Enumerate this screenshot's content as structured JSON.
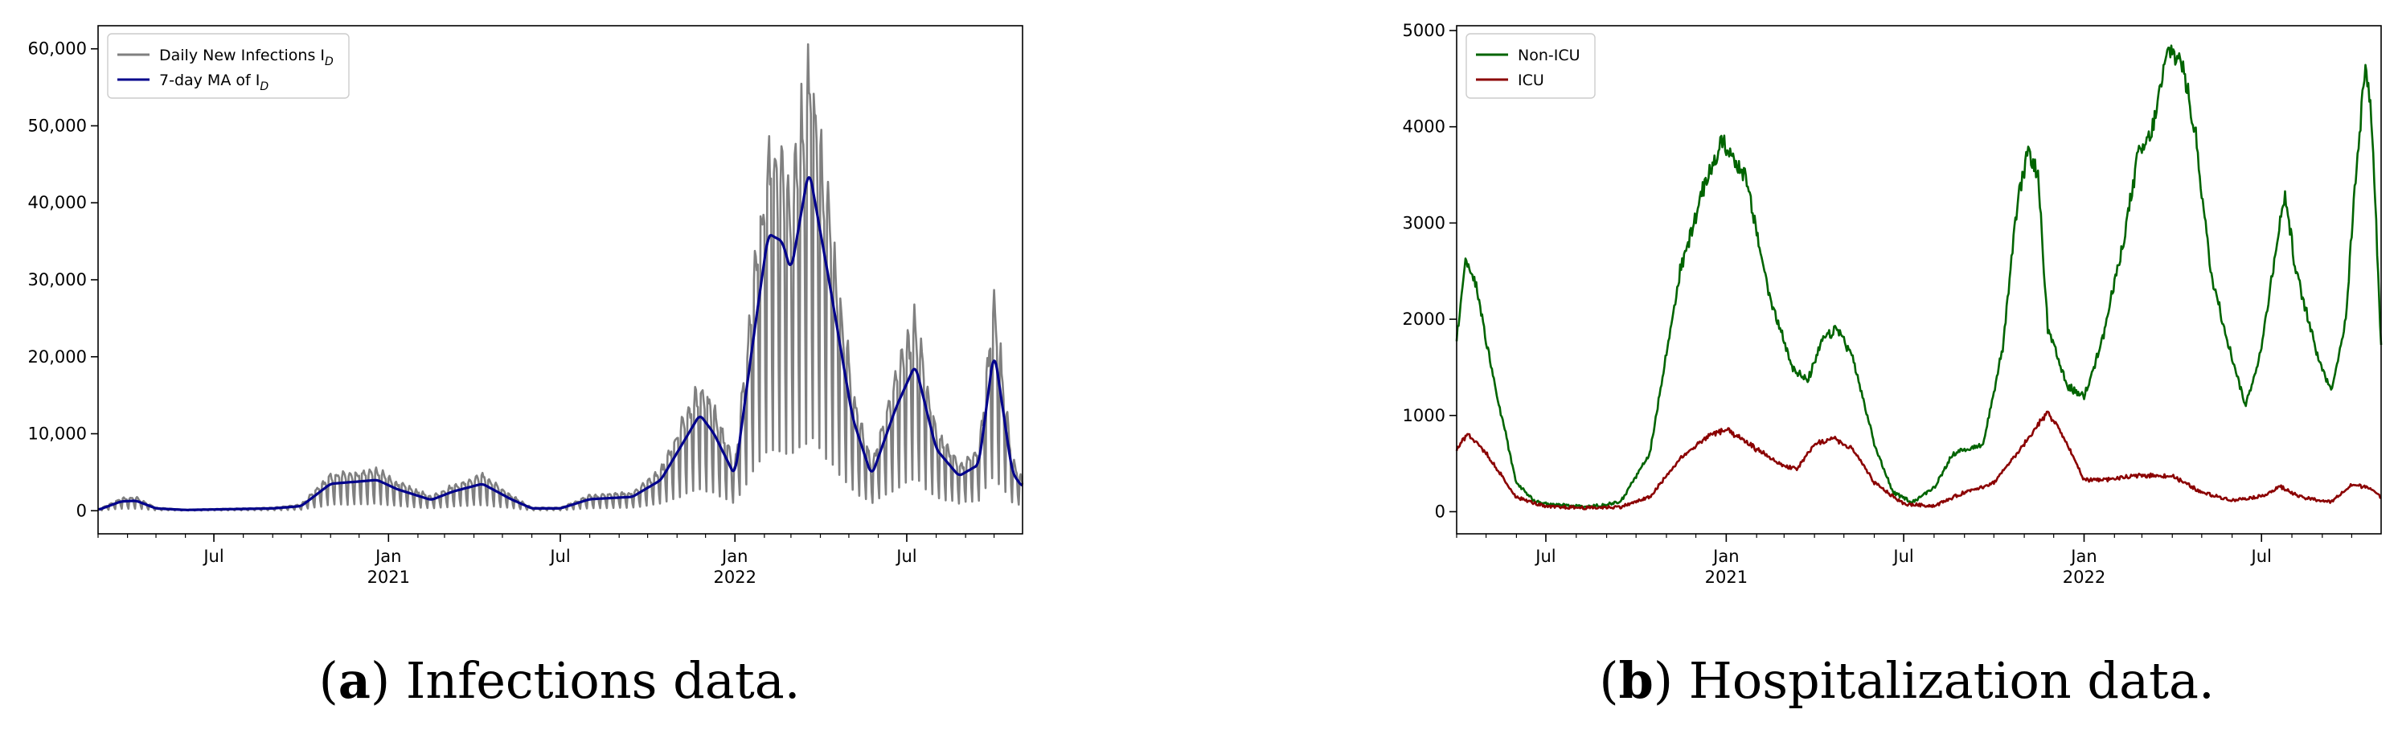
{
  "chart_data": [
    {
      "type": "line",
      "panel": "a",
      "caption_letter": "a",
      "caption_text": " Infections data.",
      "x_range": [
        "2020-03-01",
        "2022-10-31"
      ],
      "ylim": [
        -3000,
        63000
      ],
      "yticks": [
        0,
        10000,
        20000,
        30000,
        40000,
        50000,
        60000
      ],
      "ytick_labels": [
        "0",
        "10,000",
        "20,000",
        "30,000",
        "40,000",
        "50,000",
        "60,000"
      ],
      "xtick_dates": [
        "2020-07-01",
        "2021-01-01",
        "2021-07-01",
        "2022-01-01",
        "2022-07-01"
      ],
      "xtick_labels": [
        "Jul",
        "Jan\n2021",
        "Jul",
        "Jan\n2022",
        "Jul"
      ],
      "grid": false,
      "legend_position": "top-left",
      "series": [
        {
          "name": "Daily New Infections I_D",
          "color": "#808080",
          "smooth": false,
          "weekly_oscillation": true,
          "keypoints": [
            [
              "2020-03-01",
              100
            ],
            [
              "2020-03-25",
              1200
            ],
            [
              "2020-04-10",
              1300
            ],
            [
              "2020-05-01",
              300
            ],
            [
              "2020-06-01",
              100
            ],
            [
              "2020-09-01",
              300
            ],
            [
              "2020-10-01",
              600
            ],
            [
              "2020-11-01",
              3500
            ],
            [
              "2020-12-01",
              3800
            ],
            [
              "2020-12-20",
              4000
            ],
            [
              "2021-01-10",
              2800
            ],
            [
              "2021-02-15",
              1400
            ],
            [
              "2021-03-10",
              2500
            ],
            [
              "2021-04-10",
              3500
            ],
            [
              "2021-05-10",
              1500
            ],
            [
              "2021-06-01",
              300
            ],
            [
              "2021-07-01",
              300
            ],
            [
              "2021-08-01",
              1500
            ],
            [
              "2021-09-15",
              1800
            ],
            [
              "2021-10-15",
              4000
            ],
            [
              "2021-11-25",
              12500
            ],
            [
              "2021-12-10",
              10000
            ],
            [
              "2022-01-01",
              4500
            ],
            [
              "2022-01-20",
              22000
            ],
            [
              "2022-02-05",
              36000
            ],
            [
              "2022-02-20",
              35000
            ],
            [
              "2022-03-01",
              31000
            ],
            [
              "2022-03-20",
              44500
            ],
            [
              "2022-04-10",
              30000
            ],
            [
              "2022-05-05",
              12000
            ],
            [
              "2022-05-25",
              4500
            ],
            [
              "2022-06-20",
              13500
            ],
            [
              "2022-07-10",
              19000
            ],
            [
              "2022-08-01",
              8000
            ],
            [
              "2022-08-25",
              4500
            ],
            [
              "2022-09-15",
              6000
            ],
            [
              "2022-10-01",
              21000
            ],
            [
              "2022-10-20",
              5000
            ],
            [
              "2022-10-31",
              3000
            ]
          ]
        },
        {
          "name": "7-day MA of I_D",
          "color": "#00008b",
          "smooth": true,
          "weekly_oscillation": false,
          "keypoints": [
            [
              "2020-03-01",
              100
            ],
            [
              "2020-03-25",
              1200
            ],
            [
              "2020-04-10",
              1300
            ],
            [
              "2020-05-01",
              300
            ],
            [
              "2020-06-01",
              100
            ],
            [
              "2020-09-01",
              300
            ],
            [
              "2020-10-01",
              600
            ],
            [
              "2020-11-01",
              3500
            ],
            [
              "2020-12-01",
              3800
            ],
            [
              "2020-12-20",
              4000
            ],
            [
              "2021-01-10",
              2800
            ],
            [
              "2021-02-15",
              1400
            ],
            [
              "2021-03-10",
              2500
            ],
            [
              "2021-04-10",
              3500
            ],
            [
              "2021-05-10",
              1500
            ],
            [
              "2021-06-01",
              300
            ],
            [
              "2021-07-01",
              300
            ],
            [
              "2021-08-01",
              1500
            ],
            [
              "2021-09-15",
              1800
            ],
            [
              "2021-10-15",
              4000
            ],
            [
              "2021-11-25",
              12500
            ],
            [
              "2021-12-10",
              10000
            ],
            [
              "2022-01-01",
              4500
            ],
            [
              "2022-01-20",
              22000
            ],
            [
              "2022-02-05",
              36000
            ],
            [
              "2022-02-20",
              35000
            ],
            [
              "2022-03-01",
              31000
            ],
            [
              "2022-03-20",
              44500
            ],
            [
              "2022-04-10",
              30000
            ],
            [
              "2022-05-05",
              12000
            ],
            [
              "2022-05-25",
              4500
            ],
            [
              "2022-06-20",
              13500
            ],
            [
              "2022-07-10",
              19000
            ],
            [
              "2022-08-01",
              8000
            ],
            [
              "2022-08-25",
              4500
            ],
            [
              "2022-09-15",
              6000
            ],
            [
              "2022-10-01",
              21000
            ],
            [
              "2022-10-20",
              5000
            ],
            [
              "2022-10-31",
              3000
            ]
          ]
        }
      ]
    },
    {
      "type": "line",
      "panel": "b",
      "caption_letter": "b",
      "caption_text": " Hospitalization data.",
      "x_range": [
        "2020-04-01",
        "2022-10-31"
      ],
      "ylim": [
        -230,
        5050
      ],
      "yticks": [
        0,
        1000,
        2000,
        3000,
        4000,
        5000
      ],
      "ytick_labels": [
        "0",
        "1000",
        "2000",
        "3000",
        "4000",
        "5000"
      ],
      "xtick_dates": [
        "2020-07-01",
        "2021-01-01",
        "2021-07-01",
        "2022-01-01",
        "2022-07-01"
      ],
      "xtick_labels": [
        "Jul",
        "Jan\n2021",
        "Jul",
        "Jan\n2022",
        "Jul"
      ],
      "grid": false,
      "legend_position": "top-left",
      "series": [
        {
          "name": "Non-ICU",
          "color": "#006400",
          "smooth": false,
          "weekly_oscillation": false,
          "keypoints": [
            [
              "2020-04-01",
              1800
            ],
            [
              "2020-04-10",
              2600
            ],
            [
              "2020-04-20",
              2400
            ],
            [
              "2020-05-10",
              1300
            ],
            [
              "2020-06-01",
              300
            ],
            [
              "2020-06-20",
              100
            ],
            [
              "2020-07-15",
              70
            ],
            [
              "2020-08-15",
              50
            ],
            [
              "2020-09-15",
              100
            ],
            [
              "2020-10-15",
              600
            ],
            [
              "2020-11-15",
              2500
            ],
            [
              "2020-12-10",
              3400
            ],
            [
              "2020-12-28",
              3850
            ],
            [
              "2021-01-20",
              3500
            ],
            [
              "2021-02-15",
              2200
            ],
            [
              "2021-03-10",
              1500
            ],
            [
              "2021-03-25",
              1350
            ],
            [
              "2021-04-10",
              1800
            ],
            [
              "2021-04-25",
              1900
            ],
            [
              "2021-05-10",
              1600
            ],
            [
              "2021-06-01",
              700
            ],
            [
              "2021-06-20",
              200
            ],
            [
              "2021-07-10",
              100
            ],
            [
              "2021-08-01",
              250
            ],
            [
              "2021-08-20",
              600
            ],
            [
              "2021-09-20",
              700
            ],
            [
              "2021-10-10",
              1700
            ],
            [
              "2021-10-25",
              3200
            ],
            [
              "2021-11-05",
              3750
            ],
            [
              "2021-11-15",
              3500
            ],
            [
              "2021-11-25",
              1900
            ],
            [
              "2021-12-15",
              1300
            ],
            [
              "2022-01-01",
              1200
            ],
            [
              "2022-01-20",
              1800
            ],
            [
              "2022-02-10",
              2800
            ],
            [
              "2022-02-25",
              3700
            ],
            [
              "2022-03-10",
              3900
            ],
            [
              "2022-03-28",
              4800
            ],
            [
              "2022-04-10",
              4700
            ],
            [
              "2022-04-25",
              3900
            ],
            [
              "2022-05-10",
              2500
            ],
            [
              "2022-06-01",
              1600
            ],
            [
              "2022-06-15",
              1100
            ],
            [
              "2022-07-01",
              1700
            ],
            [
              "2022-07-15",
              2700
            ],
            [
              "2022-07-25",
              3300
            ],
            [
              "2022-08-05",
              2500
            ],
            [
              "2022-08-25",
              1700
            ],
            [
              "2022-09-10",
              1250
            ],
            [
              "2022-09-25",
              2000
            ],
            [
              "2022-10-05",
              3500
            ],
            [
              "2022-10-15",
              4650
            ],
            [
              "2022-10-22",
              4000
            ],
            [
              "2022-10-31",
              1700
            ]
          ]
        },
        {
          "name": "ICU",
          "color": "#8b0000",
          "smooth": false,
          "weekly_oscillation": false,
          "keypoints": [
            [
              "2020-04-01",
              650
            ],
            [
              "2020-04-12",
              820
            ],
            [
              "2020-05-01",
              600
            ],
            [
              "2020-06-01",
              150
            ],
            [
              "2020-07-01",
              50
            ],
            [
              "2020-08-15",
              40
            ],
            [
              "2020-09-15",
              50
            ],
            [
              "2020-10-15",
              150
            ],
            [
              "2020-11-15",
              550
            ],
            [
              "2020-12-15",
              800
            ],
            [
              "2021-01-01",
              850
            ],
            [
              "2021-02-01",
              650
            ],
            [
              "2021-03-01",
              470
            ],
            [
              "2021-03-15",
              450
            ],
            [
              "2021-04-01",
              700
            ],
            [
              "2021-04-20",
              760
            ],
            [
              "2021-05-10",
              650
            ],
            [
              "2021-06-01",
              300
            ],
            [
              "2021-07-01",
              80
            ],
            [
              "2021-08-01",
              60
            ],
            [
              "2021-09-01",
              200
            ],
            [
              "2021-10-01",
              300
            ],
            [
              "2021-11-01",
              700
            ],
            [
              "2021-11-25",
              1040
            ],
            [
              "2021-12-10",
              800
            ],
            [
              "2022-01-01",
              330
            ],
            [
              "2022-02-01",
              340
            ],
            [
              "2022-03-01",
              380
            ],
            [
              "2022-04-01",
              370
            ],
            [
              "2022-05-01",
              200
            ],
            [
              "2022-06-01",
              120
            ],
            [
              "2022-07-01",
              160
            ],
            [
              "2022-07-20",
              260
            ],
            [
              "2022-08-10",
              150
            ],
            [
              "2022-09-10",
              100
            ],
            [
              "2022-10-01",
              280
            ],
            [
              "2022-10-20",
              250
            ],
            [
              "2022-10-31",
              140
            ]
          ]
        }
      ]
    }
  ]
}
